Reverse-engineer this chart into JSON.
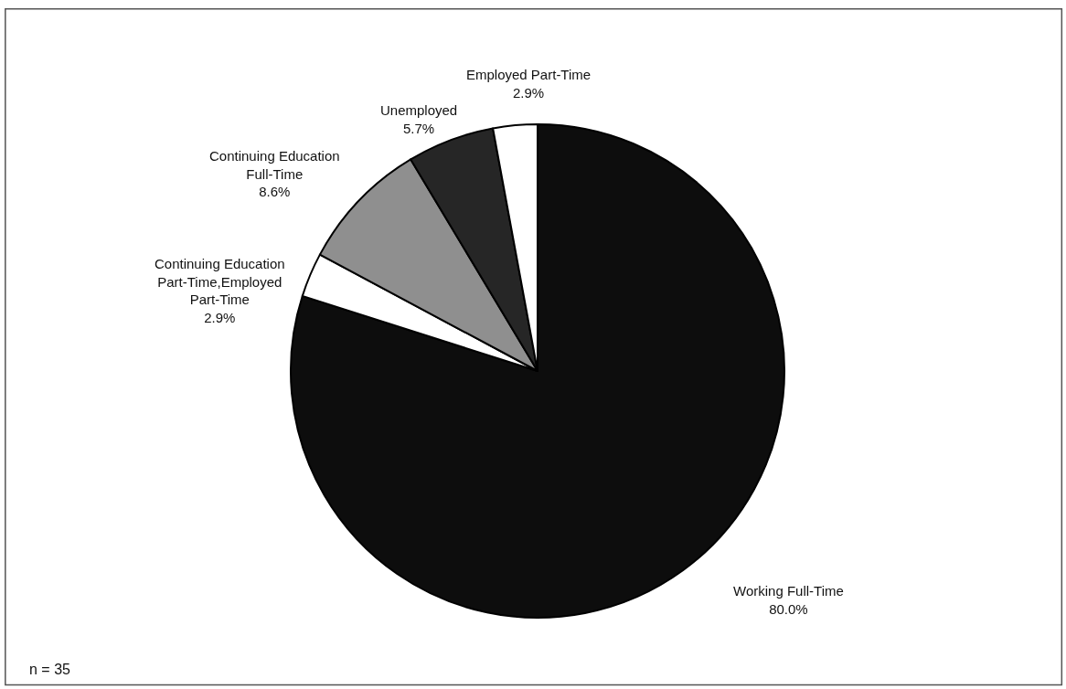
{
  "chart_data": {
    "type": "pie",
    "categories": [
      "Working Full-Time",
      "Continuing Education Part-Time,Employed Part-Time",
      "Continuing Education Full-Time",
      "Unemployed",
      "Employed Part-Time"
    ],
    "values": [
      80.0,
      2.9,
      8.6,
      5.7,
      2.9
    ],
    "colors": [
      "#0d0d0d",
      "#ffffff",
      "#8f8f8f",
      "#262626",
      "#ffffff"
    ],
    "value_labels": [
      "80.0%",
      "2.9%",
      "8.6%",
      "5.7%",
      "2.9%"
    ],
    "annotations": [
      "n = 35"
    ]
  }
}
